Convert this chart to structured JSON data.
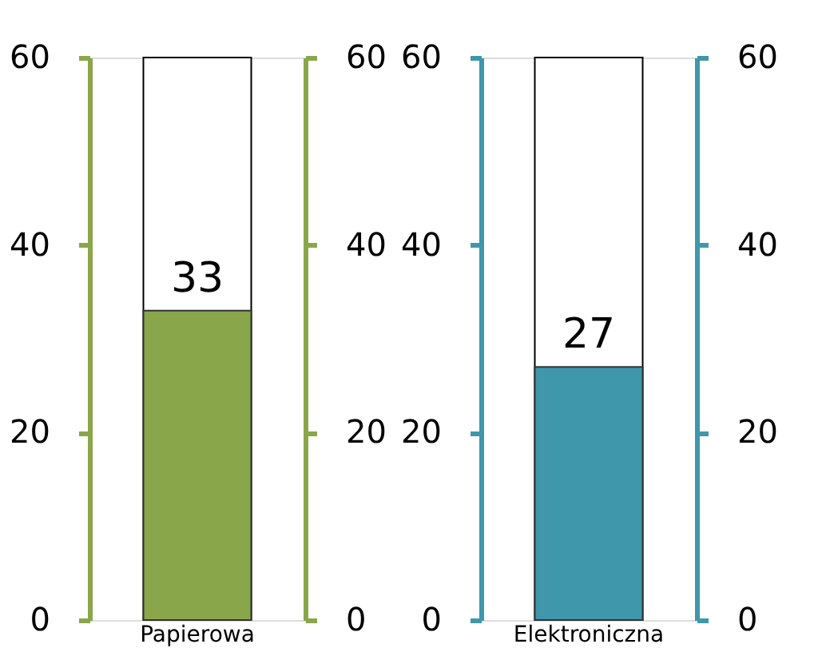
{
  "chart_data": [
    {
      "type": "bar",
      "categories": [
        "Papierowa"
      ],
      "series": [
        {
          "color": "#8aa64a",
          "values": [
            33
          ]
        }
      ],
      "ylim": [
        0,
        60
      ],
      "yticks": [
        0,
        20,
        40,
        60
      ],
      "y2lim": [
        0,
        60
      ],
      "y2ticks": [
        0,
        20,
        40,
        60
      ],
      "data_labels": true,
      "grid": false
    },
    {
      "type": "bar",
      "categories": [
        "Elektroniczna"
      ],
      "series": [
        {
          "color": "#3f97ab",
          "values": [
            27
          ]
        }
      ],
      "ylim": [
        0,
        60
      ],
      "yticks": [
        0,
        20,
        40,
        60
      ],
      "y2lim": [
        0,
        60
      ],
      "y2ticks": [
        0,
        20,
        40,
        60
      ],
      "data_labels": true,
      "grid": false
    }
  ]
}
